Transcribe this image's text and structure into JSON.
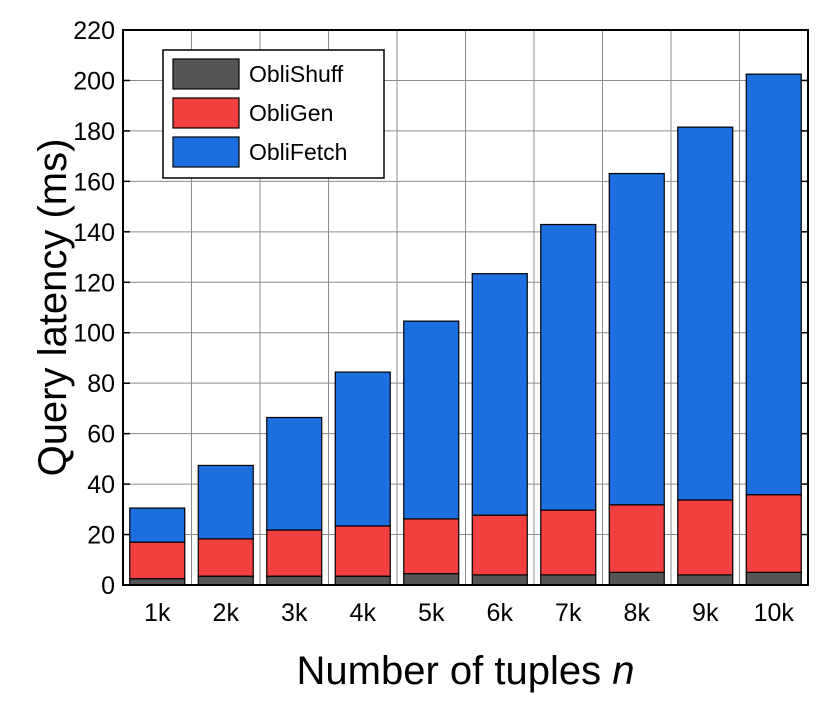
{
  "chart_data": {
    "type": "bar",
    "stacked": true,
    "categories": [
      "1k",
      "2k",
      "3k",
      "4k",
      "5k",
      "6k",
      "7k",
      "8k",
      "9k",
      "10k"
    ],
    "series": [
      {
        "name": "ObliShuff",
        "color": "#555555",
        "values": [
          2.5,
          3.5,
          3.5,
          3.5,
          4.5,
          4.0,
          4.0,
          5.0,
          4.0,
          5.0
        ]
      },
      {
        "name": "ObliGen",
        "color": "#f23f3f",
        "values": [
          14.5,
          14.8,
          18.3,
          19.9,
          21.7,
          23.7,
          25.7,
          26.8,
          29.7,
          30.8
        ]
      },
      {
        "name": "ObliFetch",
        "color": "#1d6fe0",
        "values": [
          13.5,
          29.1,
          44.6,
          61.0,
          78.4,
          95.7,
          113.2,
          131.3,
          147.8,
          166.7
        ]
      }
    ],
    "xlabel": "Number of tuples",
    "xlabel_var": "n",
    "ylabel": "Query latency (ms)",
    "ylim": [
      0,
      220
    ],
    "yticks": [
      0,
      20,
      40,
      60,
      80,
      100,
      120,
      140,
      160,
      180,
      200,
      220
    ],
    "grid": true,
    "legend_position": "top-left"
  }
}
